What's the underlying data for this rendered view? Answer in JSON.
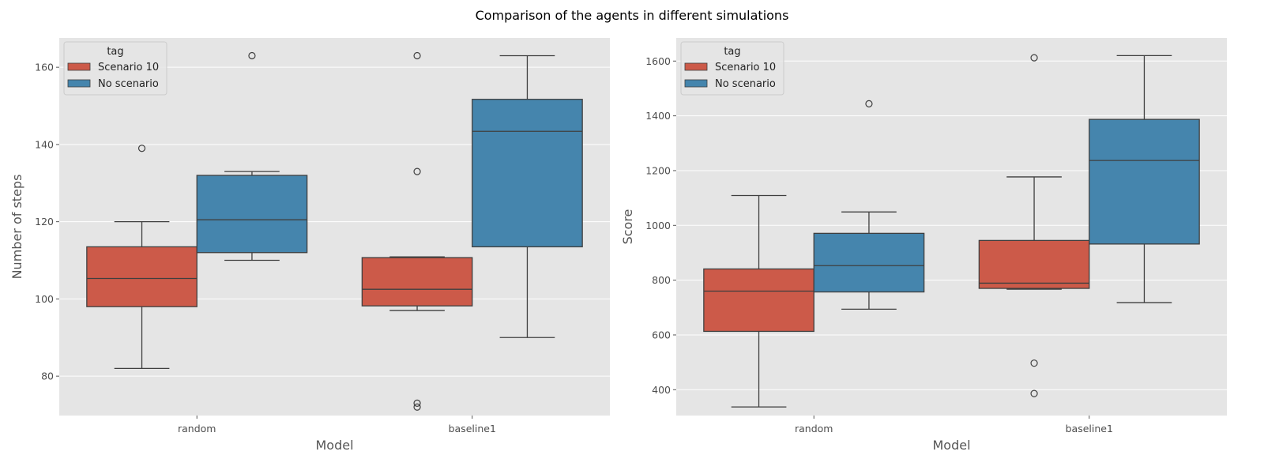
{
  "figure": {
    "title": "Comparison of the agents in different simulations"
  },
  "colors": {
    "panel_bg": "#e5e5e5",
    "grid": "#ffffff",
    "line": "#3f3f3f",
    "series": [
      "#cc5a49",
      "#4585ad"
    ]
  },
  "chart_data": [
    {
      "type": "box",
      "title": "",
      "xlabel": "Model",
      "ylabel": "Number of steps",
      "categories": [
        "random",
        "baseline1"
      ],
      "ylim": [
        69.8,
        167.6
      ],
      "yticks": [
        80,
        100,
        120,
        140,
        160
      ],
      "grid": true,
      "legend": {
        "title": "tag",
        "placement": "top-left",
        "entries": [
          "Scenario 10",
          "No scenario"
        ]
      },
      "series": [
        {
          "name": "Scenario 10",
          "boxes": [
            {
              "category": "random",
              "whisker_low": 82,
              "q1": 98,
              "median": 105.3,
              "q3": 113.5,
              "whisker_high": 120,
              "outliers": [
                139
              ]
            },
            {
              "category": "baseline1",
              "whisker_low": 97,
              "q1": 98.2,
              "median": 102.5,
              "q3": 110.7,
              "whisker_high": 110.9,
              "outliers": [
                163,
                133,
                73,
                72
              ]
            }
          ]
        },
        {
          "name": "No scenario",
          "boxes": [
            {
              "category": "random",
              "whisker_low": 110,
              "q1": 112,
              "median": 120.5,
              "q3": 132,
              "whisker_high": 133,
              "outliers": [
                163
              ]
            },
            {
              "category": "baseline1",
              "whisker_low": 90,
              "q1": 113.5,
              "median": 143.4,
              "q3": 151.7,
              "whisker_high": 163,
              "outliers": []
            }
          ]
        }
      ]
    },
    {
      "type": "box",
      "title": "",
      "xlabel": "Model",
      "ylabel": "Score",
      "categories": [
        "random",
        "baseline1"
      ],
      "ylim": [
        305.7,
        1684.5
      ],
      "yticks": [
        400,
        600,
        800,
        1000,
        1200,
        1400,
        1600
      ],
      "grid": true,
      "legend": {
        "title": "tag",
        "placement": "top-left",
        "entries": [
          "Scenario 10",
          "No scenario"
        ]
      },
      "series": [
        {
          "name": "Scenario 10",
          "boxes": [
            {
              "category": "random",
              "whisker_low": 337,
              "q1": 613,
              "median": 760,
              "q3": 841,
              "whisker_high": 1109,
              "outliers": []
            },
            {
              "category": "baseline1",
              "whisker_low": 767,
              "q1": 770,
              "median": 789,
              "q3": 945,
              "whisker_high": 1177,
              "outliers": [
                1612,
                497,
                386
              ]
            }
          ]
        },
        {
          "name": "No scenario",
          "boxes": [
            {
              "category": "random",
              "whisker_low": 694,
              "q1": 757,
              "median": 853,
              "q3": 971,
              "whisker_high": 1049,
              "outliers": [
                1444
              ]
            },
            {
              "category": "baseline1",
              "whisker_low": 718,
              "q1": 932,
              "median": 1237,
              "q3": 1387,
              "whisker_high": 1620,
              "outliers": []
            }
          ]
        }
      ]
    }
  ]
}
